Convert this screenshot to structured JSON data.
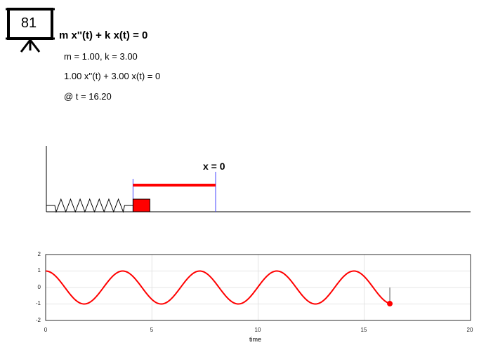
{
  "header": {
    "board_number": "81",
    "equation_title": "m x''(t) + k x(t) = 0",
    "params_text": "m = 1.00, k = 3.00",
    "equation_text": "1.00 x''(t) + 3.00 x(t) = 0",
    "time_text": "@ t = 16.20"
  },
  "scene": {
    "equilibrium_label": "x = 0",
    "mass_color": "#ff0000",
    "displacement_bar_color": "#ff0000",
    "marker_color": "#4444ff",
    "current_displacement": -0.98
  },
  "chart_data": {
    "type": "line",
    "xlabel": "time",
    "ylabel": "",
    "xlim": [
      0,
      20
    ],
    "ylim": [
      -2,
      2
    ],
    "xticks": [
      "0",
      "5",
      "10",
      "15",
      "20"
    ],
    "yticks": [
      "2",
      "1",
      "0",
      "-1",
      "-2"
    ],
    "grid": true,
    "series": [
      {
        "color": "#ff0000",
        "equation": "x(t) = cos(sqrt(3) t)",
        "t_range": [
          0,
          16.2
        ]
      }
    ],
    "current_point": {
      "t": 16.2,
      "x": -0.98
    }
  }
}
